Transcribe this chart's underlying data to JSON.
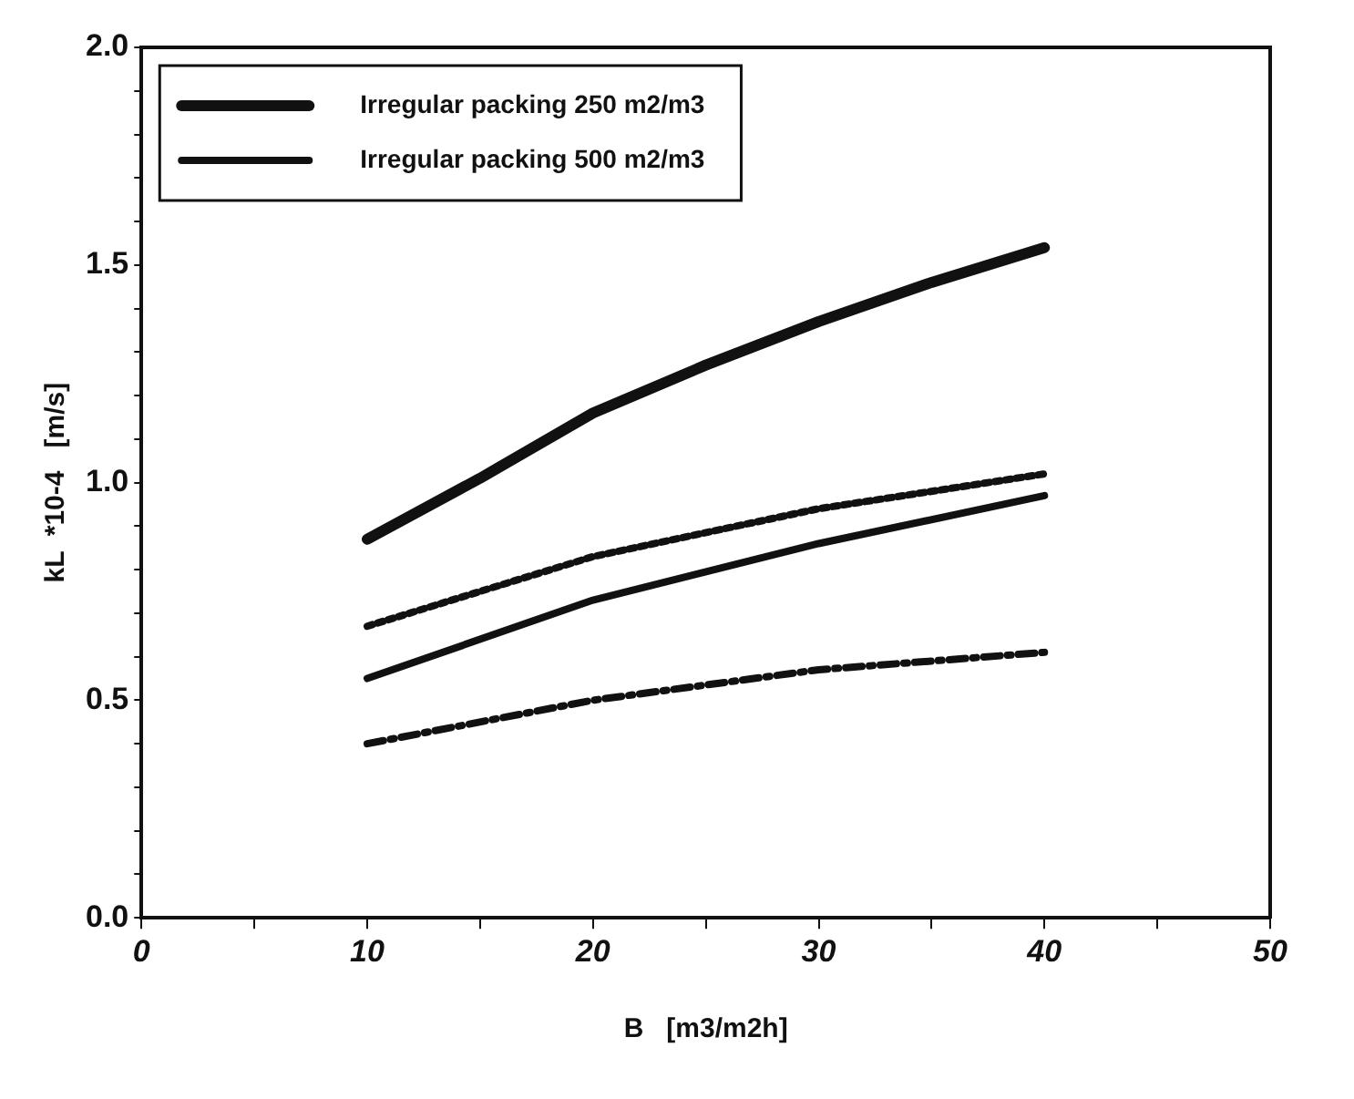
{
  "chart_data": {
    "type": "line",
    "xlabel": "B   [m3/m2h]",
    "ylabel": "kL  *10-4   [m/s]",
    "xlim": [
      0,
      50
    ],
    "ylim": [
      0,
      2
    ],
    "xticks": [
      0,
      {
        "value": 5,
        "label": null
      },
      10,
      {
        "value": 15,
        "label": null
      },
      20,
      {
        "value": 25,
        "label": null
      },
      30,
      {
        "value": 35,
        "label": null
      },
      40,
      {
        "value": 45,
        "label": null
      },
      50
    ],
    "yticks": [
      {
        "value": 0,
        "label": "0.0"
      },
      {
        "value": 0.1,
        "label": null
      },
      {
        "value": 0.2,
        "label": null
      },
      {
        "value": 0.3,
        "label": null
      },
      {
        "value": 0.4,
        "label": null
      },
      0.5,
      {
        "value": 0.6,
        "label": null
      },
      {
        "value": 0.7,
        "label": null
      },
      {
        "value": 0.8,
        "label": null
      },
      {
        "value": 0.9,
        "label": null
      },
      {
        "value": 1,
        "label": "1.0"
      },
      {
        "value": 1.1,
        "label": null
      },
      {
        "value": 1.2,
        "label": null
      },
      {
        "value": 1.3,
        "label": null
      },
      {
        "value": 1.4,
        "label": null
      },
      1.5,
      {
        "value": 1.6,
        "label": null
      },
      {
        "value": 1.7,
        "label": null
      },
      {
        "value": 1.8,
        "label": null
      },
      {
        "value": 1.9,
        "label": null
      },
      {
        "value": 2,
        "label": "2.0"
      }
    ],
    "grid": false,
    "legend": "top left",
    "marker": "none",
    "series": [
      {
        "name": "Irregular packing 250 m2/m3",
        "color": "#111111",
        "line_style": "solid",
        "x": [
          10,
          15,
          20,
          25,
          30,
          35,
          40
        ],
        "values": [
          0.87,
          1.01,
          1.16,
          1.27,
          1.37,
          1.46,
          1.54
        ]
      },
      {
        "color": "#111111",
        "line_style": "dotted",
        "x": [
          10,
          20,
          30,
          40
        ],
        "values": [
          0.67,
          0.83,
          0.94,
          1.02
        ]
      },
      {
        "name": "Irregular packing 500 m2/m3",
        "color": "#111111",
        "line_style": "solid",
        "x": [
          10,
          20,
          30,
          40
        ],
        "values": [
          0.55,
          0.73,
          0.86,
          0.97
        ]
      },
      {
        "color": "#111111",
        "line_style": "dashed",
        "x": [
          10,
          20,
          30,
          40
        ],
        "values": [
          0.4,
          0.5,
          0.57,
          0.61
        ]
      }
    ]
  }
}
